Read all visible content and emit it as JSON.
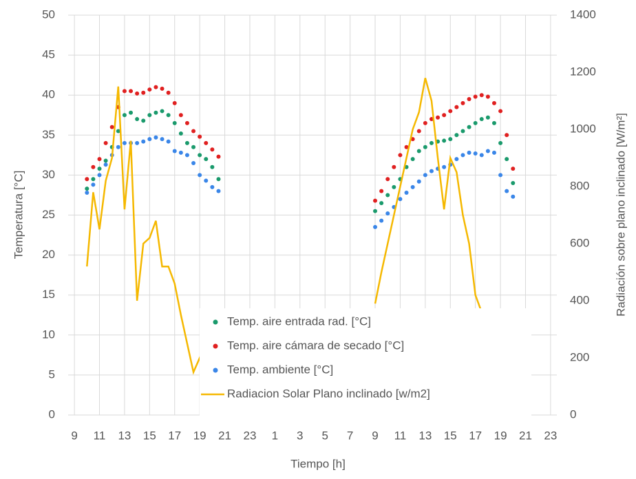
{
  "chart_data": {
    "type": "scatter",
    "xlabel": "Tiempo [h]",
    "ylabel": "Temperatura [°C]",
    "y2label": "Radiación sobre plano inclinado [W/m²]",
    "x": [
      10,
      10.5,
      11,
      11.5,
      12,
      12.5,
      13,
      13.5,
      14,
      14.5,
      15,
      15.5,
      16,
      16.5,
      17,
      17.5,
      18,
      18.5,
      19,
      19.5,
      20,
      20.5,
      27,
      33,
      33.5,
      34,
      34.5,
      35,
      35.5,
      36,
      36.5,
      37,
      37.5,
      38,
      38.5,
      39,
      39.5,
      40,
      40.5,
      41,
      41.5,
      42,
      42.5,
      43,
      43.5,
      44
    ],
    "xlim": [
      8.5,
      47.5
    ],
    "xticks": [
      {
        "value": 9,
        "label": "9"
      },
      {
        "value": 11,
        "label": "11"
      },
      {
        "value": 13,
        "label": "13"
      },
      {
        "value": 15,
        "label": "15"
      },
      {
        "value": 17,
        "label": "17"
      },
      {
        "value": 19,
        "label": "19"
      },
      {
        "value": 21,
        "label": "21"
      },
      {
        "value": 23,
        "label": "23"
      },
      {
        "value": 25,
        "label": "1"
      },
      {
        "value": 27,
        "label": "3"
      },
      {
        "value": 29,
        "label": "5"
      },
      {
        "value": 31,
        "label": "7"
      },
      {
        "value": 33,
        "label": "9"
      },
      {
        "value": 35,
        "label": "11"
      },
      {
        "value": 37,
        "label": "13"
      },
      {
        "value": 39,
        "label": "15"
      },
      {
        "value": 41,
        "label": "17"
      },
      {
        "value": 43,
        "label": "19"
      },
      {
        "value": 45,
        "label": "21"
      },
      {
        "value": 47,
        "label": "23"
      }
    ],
    "ylim": [
      0,
      50
    ],
    "yticks": [
      0,
      5,
      10,
      15,
      20,
      25,
      30,
      35,
      40,
      45,
      50
    ],
    "y2lim": [
      0,
      1400
    ],
    "y2ticks": [
      0,
      200,
      400,
      600,
      800,
      1000,
      1200,
      1400
    ],
    "grid": true,
    "series": [
      {
        "name": "Temp. aire entrada rad. [°C]",
        "color": "#1a9a6c",
        "type": "scatter",
        "values": [
          28.3,
          29.5,
          30.8,
          31.8,
          33.5,
          35.5,
          37.5,
          37.8,
          37,
          36.8,
          37.5,
          37.8,
          38,
          37.5,
          36.5,
          35.2,
          34,
          33.5,
          32.5,
          32,
          31,
          29.5,
          null,
          25.5,
          26.5,
          27.5,
          28.5,
          29.5,
          31,
          32,
          33,
          33.5,
          34,
          34.2,
          34.3,
          34.5,
          35,
          35.5,
          36,
          36.5,
          37,
          37.2,
          36.5,
          34,
          32,
          29
        ]
      },
      {
        "name": "Temp. aire cámara de secado [°C]",
        "color": "#e02020",
        "type": "scatter",
        "values": [
          29.5,
          31,
          32,
          34,
          36,
          38.5,
          40.5,
          40.5,
          40.2,
          40.3,
          40.7,
          41,
          40.8,
          40.3,
          39,
          37.5,
          36.5,
          35.5,
          34.8,
          34,
          33.2,
          32.3,
          null,
          26.8,
          28,
          29.5,
          31,
          32.5,
          33.5,
          34.5,
          35.5,
          36.5,
          37,
          37.2,
          37.5,
          38,
          38.5,
          39,
          39.5,
          39.8,
          40,
          39.8,
          39,
          38,
          35,
          30.8
        ]
      },
      {
        "name": "Temp. ambiente [°C]",
        "color": "#3a86e8",
        "type": "scatter",
        "values": [
          27.8,
          28.8,
          30,
          31.3,
          32.5,
          33.5,
          34,
          34,
          34,
          34.2,
          34.5,
          34.7,
          34.5,
          34.2,
          33,
          32.8,
          32.5,
          31.5,
          30,
          29.3,
          28.5,
          28,
          null,
          23.5,
          24.3,
          25.2,
          26,
          27,
          27.8,
          28.5,
          29.2,
          30,
          30.5,
          30.8,
          31,
          31.3,
          32,
          32.5,
          32.8,
          32.7,
          32.5,
          33,
          32.8,
          30,
          28,
          27.3
        ]
      },
      {
        "name": "Radiacion Solar Plano inclinado [w/m2]",
        "color": "#f5b800",
        "type": "line",
        "axis": "y2",
        "values": [
          520,
          780,
          650,
          820,
          900,
          1150,
          720,
          960,
          400,
          600,
          620,
          680,
          520,
          520,
          460,
          350,
          250,
          150,
          200,
          120,
          50,
          50,
          null,
          390,
          500,
          600,
          700,
          800,
          900,
          1000,
          1060,
          1180,
          1100,
          900,
          720,
          900,
          850,
          700,
          600,
          420,
          360,
          null,
          null,
          null,
          null,
          null
        ]
      }
    ]
  }
}
